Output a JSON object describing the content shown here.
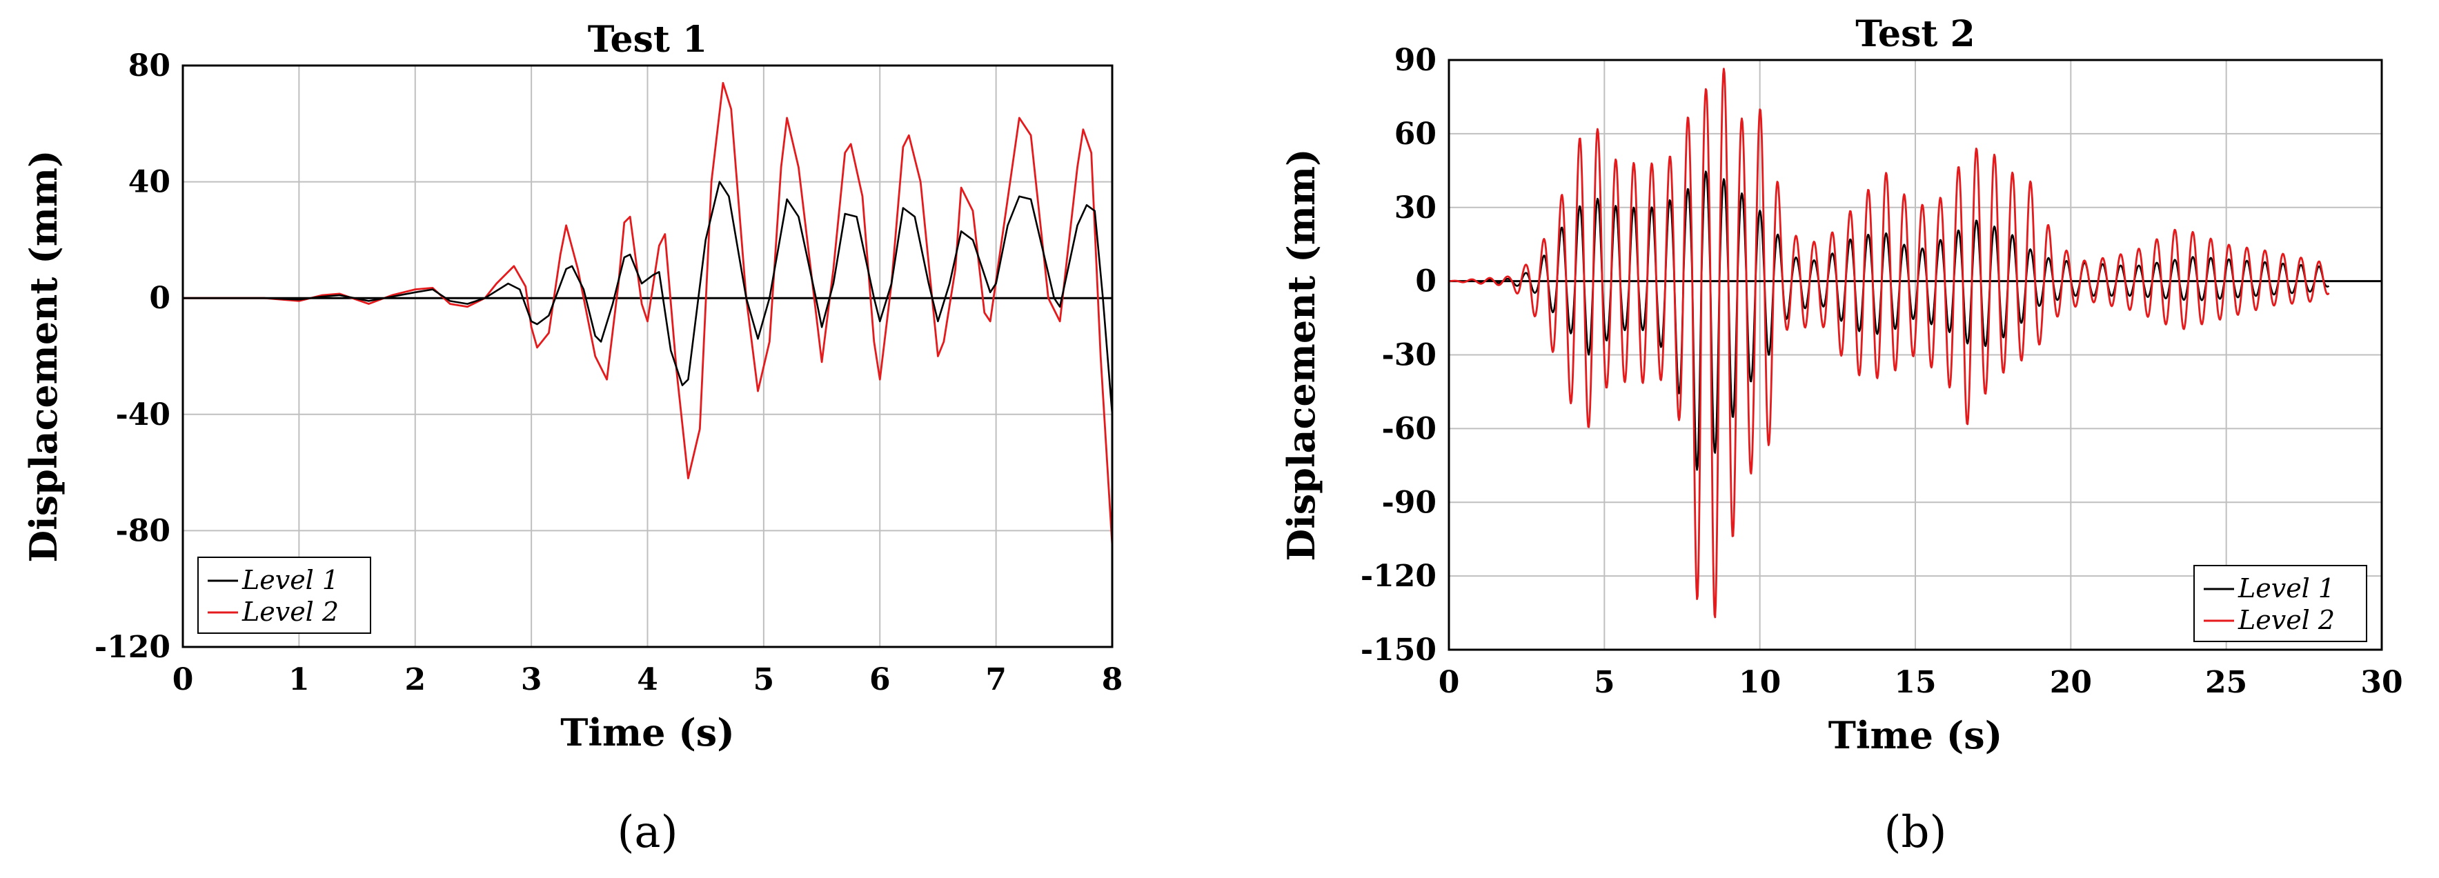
{
  "chart_data": [
    {
      "type": "line",
      "title": "Test 1",
      "xlabel": "Time (s)",
      "ylabel": "Displacement (mm)",
      "xlim": [
        0,
        8
      ],
      "ylim": [
        -120,
        80
      ],
      "xticks": [
        0,
        1,
        2,
        3,
        4,
        5,
        6,
        7,
        8
      ],
      "yticks": [
        -120,
        -80,
        -40,
        0,
        40,
        80
      ],
      "grid": true,
      "legend_position": "bottom-left",
      "caption": "(a)",
      "series": [
        {
          "name": "Level 1",
          "color": "#000000",
          "points": [
            [
              0,
              0
            ],
            [
              0.4,
              0
            ],
            [
              0.7,
              0
            ],
            [
              1.0,
              -0.5
            ],
            [
              1.2,
              0.5
            ],
            [
              1.35,
              1
            ],
            [
              1.6,
              -1
            ],
            [
              1.8,
              0.5
            ],
            [
              2.0,
              2
            ],
            [
              2.15,
              3
            ],
            [
              2.3,
              -1
            ],
            [
              2.45,
              -2
            ],
            [
              2.6,
              0
            ],
            [
              2.8,
              5
            ],
            [
              2.9,
              3
            ],
            [
              3.0,
              -8
            ],
            [
              3.05,
              -9
            ],
            [
              3.15,
              -6
            ],
            [
              3.3,
              10
            ],
            [
              3.35,
              11
            ],
            [
              3.45,
              3
            ],
            [
              3.55,
              -13
            ],
            [
              3.6,
              -15
            ],
            [
              3.7,
              -2
            ],
            [
              3.8,
              14
            ],
            [
              3.85,
              15
            ],
            [
              3.95,
              5
            ],
            [
              4.05,
              8
            ],
            [
              4.1,
              9
            ],
            [
              4.2,
              -18
            ],
            [
              4.3,
              -30
            ],
            [
              4.35,
              -28
            ],
            [
              4.5,
              20
            ],
            [
              4.62,
              40
            ],
            [
              4.7,
              35
            ],
            [
              4.85,
              0
            ],
            [
              4.95,
              -14
            ],
            [
              5.05,
              0
            ],
            [
              5.2,
              34
            ],
            [
              5.3,
              28
            ],
            [
              5.45,
              0
            ],
            [
              5.5,
              -10
            ],
            [
              5.6,
              5
            ],
            [
              5.7,
              29
            ],
            [
              5.8,
              28
            ],
            [
              5.95,
              0
            ],
            [
              6.0,
              -8
            ],
            [
              6.1,
              5
            ],
            [
              6.2,
              31
            ],
            [
              6.3,
              28
            ],
            [
              6.42,
              5
            ],
            [
              6.5,
              -8
            ],
            [
              6.6,
              5
            ],
            [
              6.7,
              23
            ],
            [
              6.8,
              20
            ],
            [
              6.95,
              2
            ],
            [
              7.0,
              5
            ],
            [
              7.1,
              25
            ],
            [
              7.2,
              35
            ],
            [
              7.3,
              34
            ],
            [
              7.5,
              0
            ],
            [
              7.55,
              -3
            ],
            [
              7.7,
              25
            ],
            [
              7.78,
              32
            ],
            [
              7.85,
              30
            ],
            [
              7.92,
              0
            ],
            [
              8.0,
              -40
            ]
          ]
        },
        {
          "name": "Level 2",
          "color": "#e41a1c",
          "points": [
            [
              0,
              0
            ],
            [
              0.4,
              0
            ],
            [
              0.7,
              0
            ],
            [
              1.0,
              -1
            ],
            [
              1.2,
              1
            ],
            [
              1.35,
              1.5
            ],
            [
              1.6,
              -2
            ],
            [
              1.8,
              1
            ],
            [
              2.0,
              3
            ],
            [
              2.15,
              3.5
            ],
            [
              2.3,
              -2
            ],
            [
              2.45,
              -3
            ],
            [
              2.6,
              0
            ],
            [
              2.7,
              5
            ],
            [
              2.85,
              11
            ],
            [
              2.95,
              4
            ],
            [
              3.0,
              -10
            ],
            [
              3.05,
              -17
            ],
            [
              3.15,
              -12
            ],
            [
              3.25,
              15
            ],
            [
              3.3,
              25
            ],
            [
              3.4,
              10
            ],
            [
              3.55,
              -20
            ],
            [
              3.65,
              -28
            ],
            [
              3.75,
              5
            ],
            [
              3.8,
              26
            ],
            [
              3.85,
              28
            ],
            [
              3.95,
              -2
            ],
            [
              4.0,
              -8
            ],
            [
              4.1,
              18
            ],
            [
              4.15,
              22
            ],
            [
              4.25,
              -25
            ],
            [
              4.35,
              -62
            ],
            [
              4.45,
              -45
            ],
            [
              4.55,
              40
            ],
            [
              4.65,
              74
            ],
            [
              4.72,
              65
            ],
            [
              4.85,
              0
            ],
            [
              4.95,
              -32
            ],
            [
              5.05,
              -15
            ],
            [
              5.15,
              45
            ],
            [
              5.2,
              62
            ],
            [
              5.3,
              45
            ],
            [
              5.45,
              -5
            ],
            [
              5.5,
              -22
            ],
            [
              5.6,
              10
            ],
            [
              5.7,
              50
            ],
            [
              5.75,
              53
            ],
            [
              5.85,
              35
            ],
            [
              5.95,
              -15
            ],
            [
              6.0,
              -28
            ],
            [
              6.1,
              5
            ],
            [
              6.2,
              52
            ],
            [
              6.25,
              56
            ],
            [
              6.35,
              40
            ],
            [
              6.5,
              -20
            ],
            [
              6.55,
              -15
            ],
            [
              6.65,
              10
            ],
            [
              6.7,
              38
            ],
            [
              6.8,
              30
            ],
            [
              6.9,
              -5
            ],
            [
              6.95,
              -8
            ],
            [
              7.05,
              20
            ],
            [
              7.2,
              62
            ],
            [
              7.3,
              56
            ],
            [
              7.45,
              0
            ],
            [
              7.55,
              -8
            ],
            [
              7.7,
              45
            ],
            [
              7.75,
              58
            ],
            [
              7.82,
              50
            ],
            [
              7.9,
              -20
            ],
            [
              8.0,
              -85
            ]
          ]
        }
      ]
    },
    {
      "type": "line",
      "title": "Test 2",
      "xlabel": "Time (s)",
      "ylabel": "Displacement (mm)",
      "xlim": [
        0,
        30
      ],
      "ylim": [
        -150,
        90
      ],
      "xticks": [
        0,
        5,
        10,
        15,
        20,
        25,
        30
      ],
      "yticks": [
        -150,
        -120,
        -90,
        -60,
        -30,
        0,
        30,
        60,
        90
      ],
      "grid": true,
      "legend_position": "bottom-right",
      "caption": "(b)",
      "series": [
        {
          "name": "Level 1",
          "color": "#000000",
          "envelope": [
            [
              0,
              0
            ],
            [
              2,
              1
            ],
            [
              2.8,
              5
            ],
            [
              3.5,
              20
            ],
            [
              4.5,
              35
            ],
            [
              5.5,
              30
            ],
            [
              6.5,
              30
            ],
            [
              7.5,
              35
            ],
            [
              8.2,
              45
            ],
            [
              8.8,
              42
            ],
            [
              9.5,
              35
            ],
            [
              10.3,
              25
            ],
            [
              11,
              10
            ],
            [
              12,
              8
            ],
            [
              13,
              18
            ],
            [
              14,
              20
            ],
            [
              15,
              12
            ],
            [
              16,
              18
            ],
            [
              17,
              25
            ],
            [
              18,
              20
            ],
            [
              19,
              10
            ],
            [
              20,
              8
            ],
            [
              22,
              6
            ],
            [
              24,
              10
            ],
            [
              26,
              8
            ],
            [
              28,
              6
            ],
            [
              28.3,
              4
            ]
          ],
          "negative_envelope": [
            [
              0,
              0
            ],
            [
              2,
              -1
            ],
            [
              2.8,
              -5
            ],
            [
              3.5,
              -15
            ],
            [
              4.5,
              -30
            ],
            [
              5.5,
              -20
            ],
            [
              6.5,
              -20
            ],
            [
              7.2,
              -35
            ],
            [
              8.0,
              -78
            ],
            [
              8.7,
              -68
            ],
            [
              9.5,
              -45
            ],
            [
              10.3,
              -30
            ],
            [
              11,
              -12
            ],
            [
              12,
              -10
            ],
            [
              13,
              -20
            ],
            [
              14,
              -22
            ],
            [
              15,
              -15
            ],
            [
              16,
              -20
            ],
            [
              17,
              -28
            ],
            [
              18,
              -22
            ],
            [
              19,
              -10
            ],
            [
              20,
              -6
            ],
            [
              22,
              -6
            ],
            [
              24,
              -8
            ],
            [
              26,
              -6
            ],
            [
              28,
              -4
            ],
            [
              28.3,
              -2
            ]
          ],
          "period_s": 0.58
        },
        {
          "name": "Level 2",
          "color": "#e41a1c",
          "envelope": [
            [
              0,
              0
            ],
            [
              2,
              2
            ],
            [
              2.8,
              10
            ],
            [
              3.5,
              30
            ],
            [
              4.5,
              70
            ],
            [
              5.2,
              50
            ],
            [
              6,
              48
            ],
            [
              7,
              48
            ],
            [
              7.8,
              70
            ],
            [
              8.8,
              88
            ],
            [
              9.6,
              60
            ],
            [
              10.2,
              75
            ],
            [
              10.8,
              20
            ],
            [
              12,
              15
            ],
            [
              13,
              30
            ],
            [
              14,
              45
            ],
            [
              15,
              30
            ],
            [
              16,
              35
            ],
            [
              16.6,
              53
            ],
            [
              17.3,
              55
            ],
            [
              18,
              45
            ],
            [
              18.8,
              40
            ],
            [
              19.5,
              15
            ],
            [
              20.5,
              8
            ],
            [
              22,
              12
            ],
            [
              23.5,
              22
            ],
            [
              25,
              15
            ],
            [
              26.5,
              12
            ],
            [
              28,
              8
            ],
            [
              28.3,
              5
            ]
          ],
          "negative_envelope": [
            [
              0,
              0
            ],
            [
              2,
              -2
            ],
            [
              2.8,
              -15
            ],
            [
              3.5,
              -33
            ],
            [
              4.3,
              -65
            ],
            [
              5.2,
              -40
            ],
            [
              6,
              -42
            ],
            [
              7,
              -40
            ],
            [
              7.6,
              -65
            ],
            [
              8.1,
              -150
            ],
            [
              8.7,
              -133
            ],
            [
              9.5,
              -80
            ],
            [
              10.2,
              -75
            ],
            [
              10.8,
              -20
            ],
            [
              12,
              -18
            ],
            [
              13,
              -38
            ],
            [
              14,
              -40
            ],
            [
              15,
              -30
            ],
            [
              16,
              -40
            ],
            [
              16.6,
              -60
            ],
            [
              17.3,
              -45
            ],
            [
              18,
              -35
            ],
            [
              18.8,
              -30
            ],
            [
              19.5,
              -15
            ],
            [
              20.5,
              -8
            ],
            [
              22,
              -12
            ],
            [
              23.5,
              -20
            ],
            [
              25,
              -15
            ],
            [
              26.5,
              -10
            ],
            [
              28,
              -8
            ],
            [
              28.3,
              -5
            ]
          ],
          "period_s": 0.58
        }
      ]
    }
  ]
}
